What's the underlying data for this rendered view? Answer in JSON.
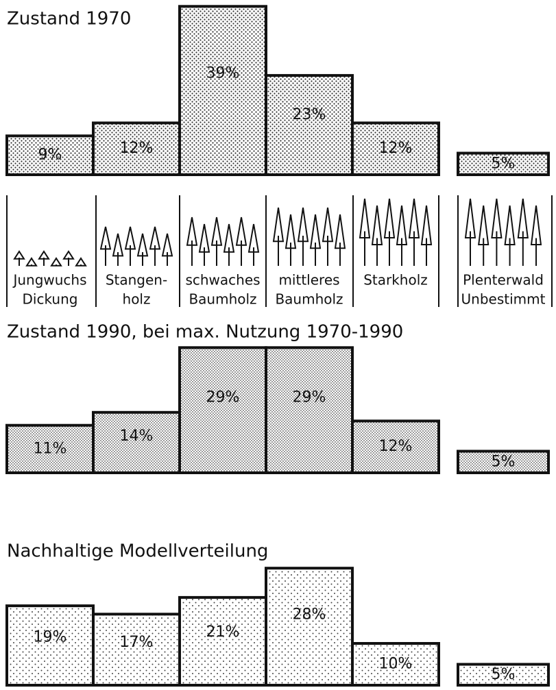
{
  "chart_data": [
    {
      "type": "bar",
      "title": "Zustand 1970",
      "categories": [
        [
          "Jungwuchs",
          "Dickung"
        ],
        [
          "Stangen-",
          "holz"
        ],
        [
          "schwaches",
          "Baumholz"
        ],
        [
          "mittleres",
          "Baumholz"
        ],
        [
          "Starkholz"
        ],
        [
          "Plenterwald",
          "Unbestimmt"
        ]
      ],
      "values": [
        9,
        12,
        39,
        23,
        12,
        5
      ],
      "value_labels": [
        "9%",
        "12%",
        "39%",
        "23%",
        "12%",
        "5%"
      ]
    },
    {
      "type": "bar",
      "title": "Zustand 1990, bei max. Nutzung 1970-1990",
      "values": [
        11,
        14,
        29,
        29,
        12,
        5
      ],
      "value_labels": [
        "11%",
        "14%",
        "29%",
        "29%",
        "12%",
        "5%"
      ]
    },
    {
      "type": "bar",
      "title": "Nachhaltige Modellverteilung",
      "values": [
        19,
        17,
        21,
        28,
        10,
        5
      ],
      "value_labels": [
        "19%",
        "17%",
        "21%",
        "28%",
        "10%",
        "5%"
      ]
    }
  ]
}
